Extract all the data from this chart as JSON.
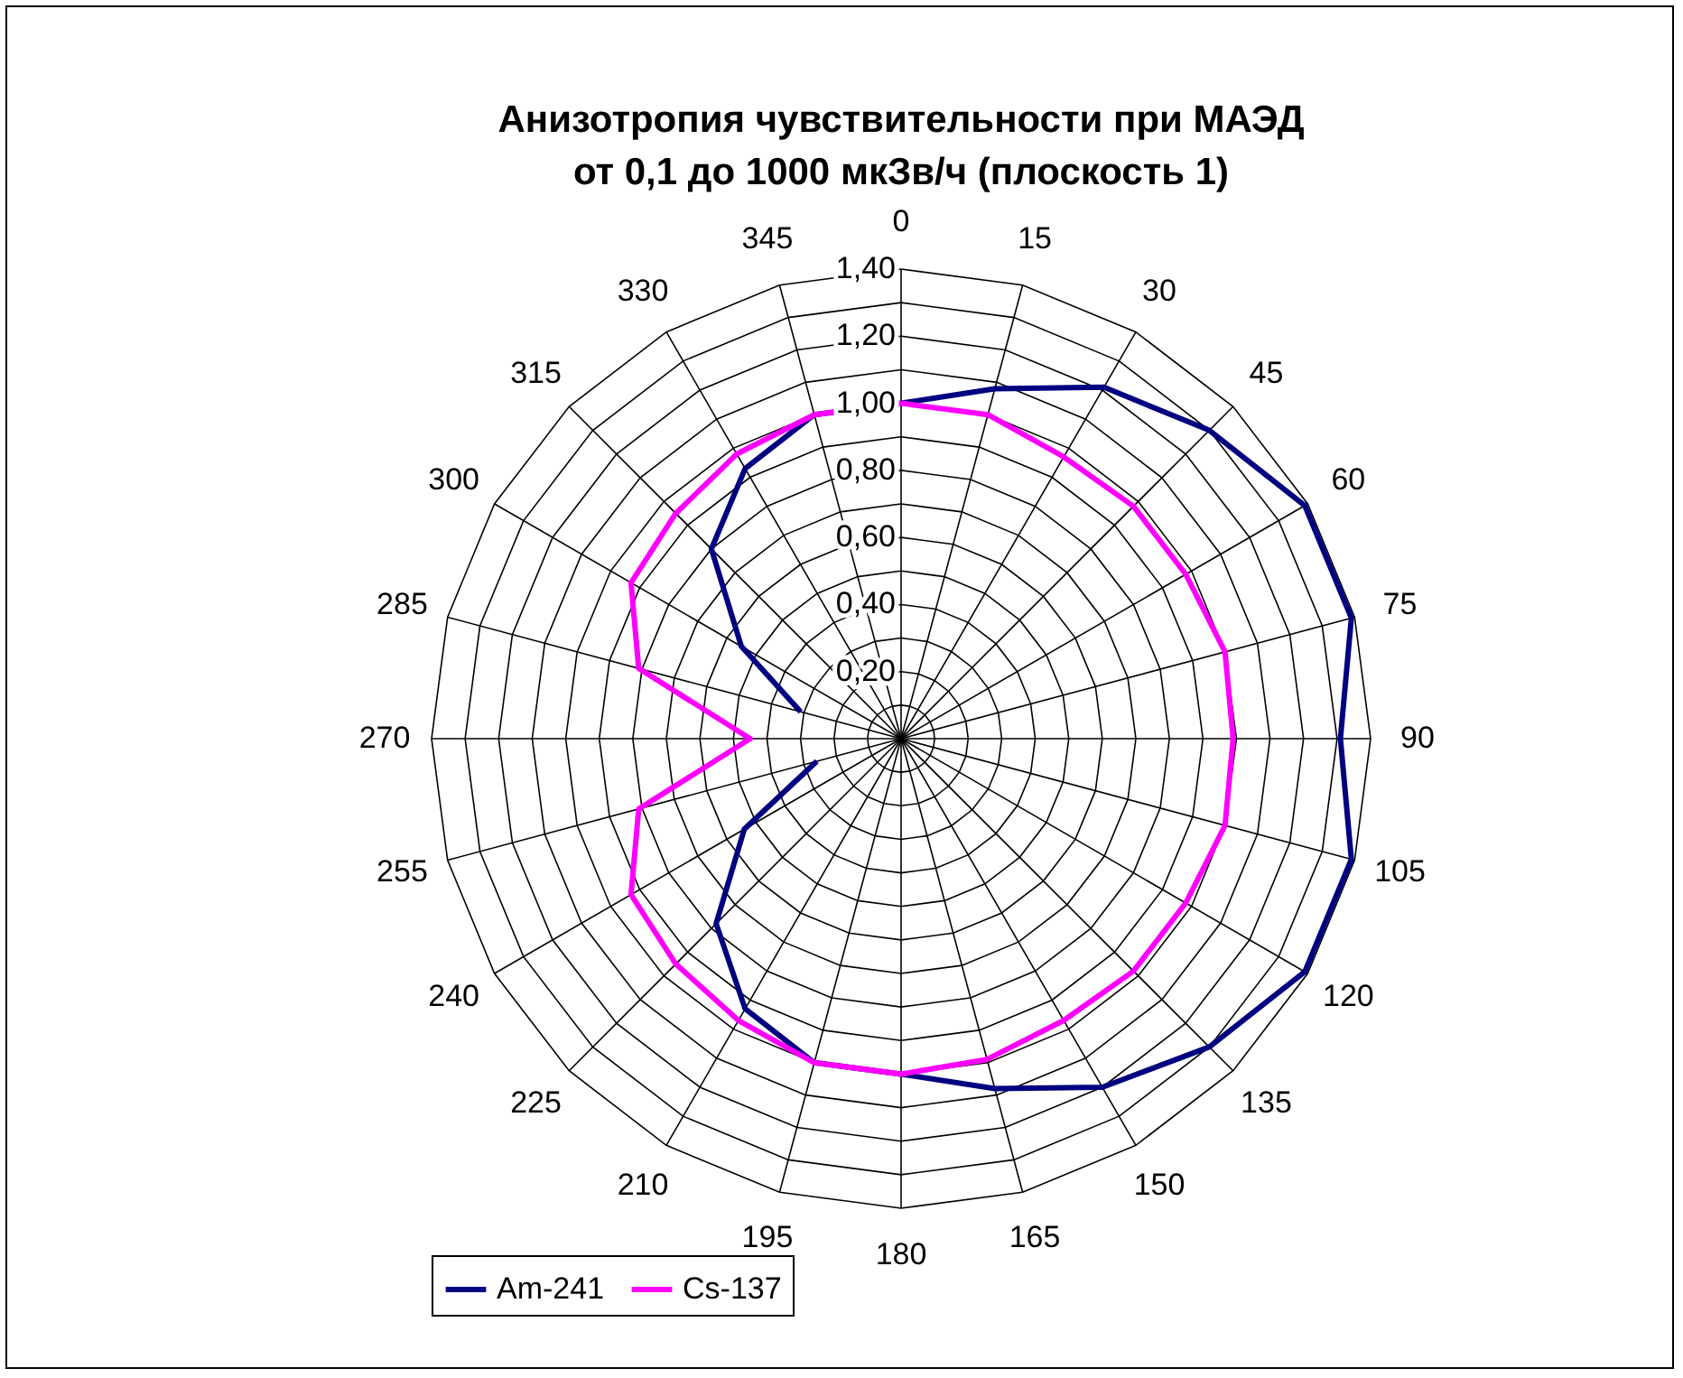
{
  "chart_data": {
    "type": "radar",
    "title": "Анизотропия чувствительности при МАЭД от 0,1 до 1000 мкЗв/ч (плоскость 1)",
    "categories": [
      "0",
      "15",
      "30",
      "45",
      "60",
      "75",
      "90",
      "105",
      "120",
      "135",
      "150",
      "165",
      "180",
      "195",
      "210",
      "225",
      "240",
      "255",
      "270",
      "285",
      "300",
      "315",
      "330",
      "345"
    ],
    "series": [
      {
        "name": "Am-241",
        "color": "#000080",
        "values": [
          1.0,
          1.08,
          1.21,
          1.3,
          1.39,
          1.39,
          1.31,
          1.39,
          1.39,
          1.3,
          1.2,
          1.08,
          1.0,
          1.0,
          0.93,
          0.78,
          0.54,
          0.26,
          null,
          0.31,
          0.55,
          0.8,
          0.93,
          1.0
        ]
      },
      {
        "name": "Cs-137",
        "color": "#ff00ff",
        "values": [
          1.0,
          1.0,
          0.97,
          0.98,
          0.98,
          1.0,
          0.99,
          1.0,
          0.98,
          0.98,
          0.97,
          0.99,
          1.0,
          1.0,
          0.97,
          0.95,
          0.93,
          0.81,
          0.45,
          0.81,
          0.93,
          0.95,
          0.98,
          1.0
        ]
      }
    ],
    "ylim": [
      0,
      1.4
    ],
    "yticks": [
      {
        "value": 0.2,
        "label": "0,20"
      },
      {
        "value": 0.4,
        "label": "0,40"
      },
      {
        "value": 0.6,
        "label": "0,60"
      },
      {
        "value": 0.8,
        "label": "0,80"
      },
      {
        "value": 1.0,
        "label": "1,00"
      },
      {
        "value": 1.2,
        "label": "1,20"
      },
      {
        "value": 1.4,
        "label": "1,40"
      }
    ],
    "grid": true,
    "legend": "bottom"
  }
}
